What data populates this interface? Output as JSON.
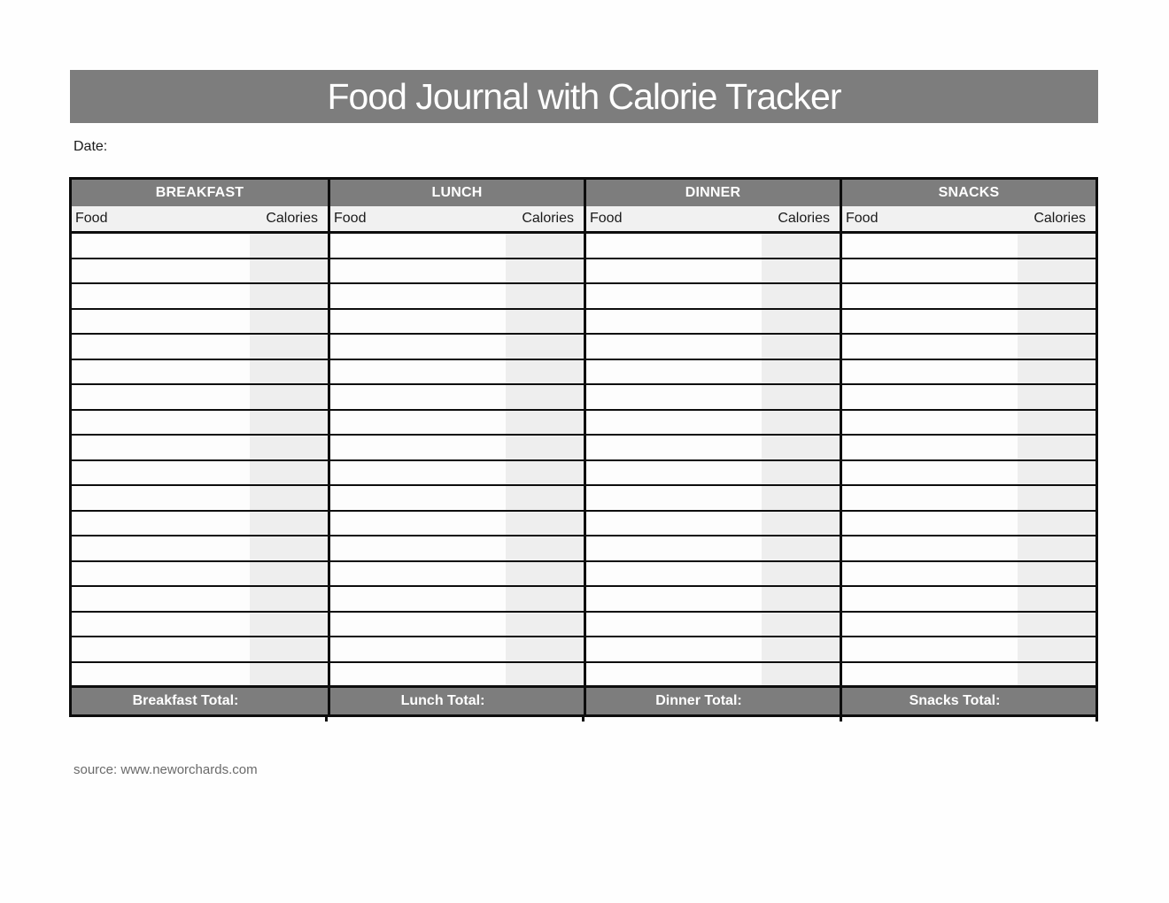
{
  "page": {
    "title": "Food Journal with Calorie Tracker",
    "date_label": "Date:",
    "source_text": "source: www.neworchards.com"
  },
  "colors": {
    "banner_gray": "#7d7d7d",
    "header_text": "#ffffff",
    "subheader_bg": "#f1f1f1",
    "calories_cell_bg": "#eeeeee",
    "food_cell_bg": "#fdfdfd",
    "border_black": "#0d0d0d",
    "source_text_color": "#6a6a6a",
    "body_text": "#1a1a1a"
  },
  "table": {
    "row_count": 18,
    "column_headers": {
      "food": "Food",
      "calories": "Calories"
    },
    "sections": [
      {
        "name": "BREAKFAST",
        "total_label": "Breakfast Total:"
      },
      {
        "name": "LUNCH",
        "total_label": "Lunch Total:"
      },
      {
        "name": "DINNER",
        "total_label": "Dinner Total:"
      },
      {
        "name": "SNACKS",
        "total_label": "Snacks Total:"
      }
    ],
    "empty_cell_value": ""
  }
}
